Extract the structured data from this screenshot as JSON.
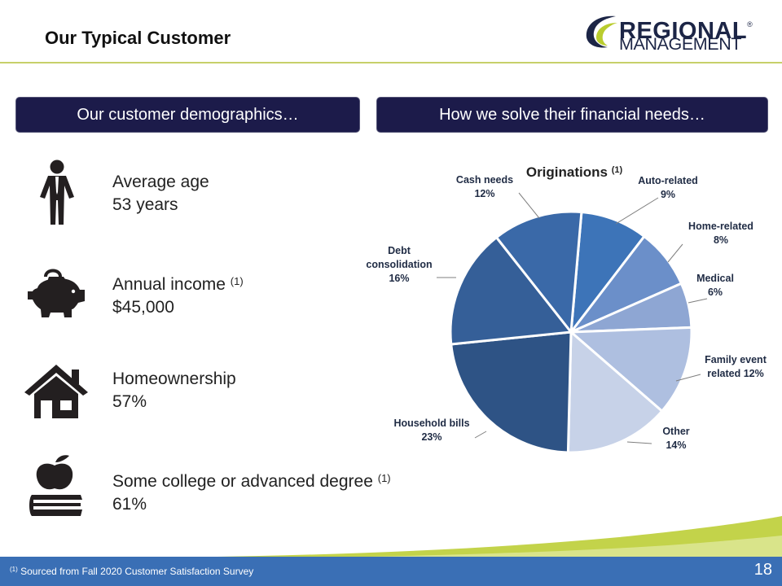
{
  "title": "Our Typical Customer",
  "logo": {
    "line1": "REGIONAL",
    "line2": "MANAGEMENT",
    "registered": "®"
  },
  "left_header": "Our customer demographics…",
  "right_header": "How we solve their financial needs…",
  "demographics": [
    {
      "icon": "person-icon",
      "label": "Average age",
      "footnote": "",
      "value": "53 years"
    },
    {
      "icon": "piggy-bank-icon",
      "label": "Annual income",
      "footnote": "(1)",
      "value": "$45,000"
    },
    {
      "icon": "house-icon",
      "label": "Homeownership",
      "footnote": "",
      "value": "57%"
    },
    {
      "icon": "apple-books-icon",
      "label": "Some college or advanced degree",
      "footnote": "(1)",
      "value": "61%"
    }
  ],
  "chart_data": {
    "type": "pie",
    "title": "Originations",
    "title_footnote": "(1)",
    "slices": [
      {
        "label": "Auto-related",
        "value": 9,
        "text": "9%",
        "color": "#3d74b8"
      },
      {
        "label": "Home-related",
        "value": 8,
        "text": "8%",
        "color": "#6b8fc9"
      },
      {
        "label": "Medical",
        "value": 6,
        "text": "6%",
        "color": "#8ea6d3"
      },
      {
        "label": "Family event related",
        "value": 12,
        "text": "12%",
        "color": "#aebfe0"
      },
      {
        "label": "Other",
        "value": 14,
        "text": "14%",
        "color": "#c7d2e8"
      },
      {
        "label": "Household bills",
        "value": 23,
        "text": "23%",
        "color": "#2e5385"
      },
      {
        "label": "Debt consolidation",
        "value": 16,
        "text": "16%",
        "color": "#355f98"
      },
      {
        "label": "Cash needs",
        "value": 12,
        "text": "12%",
        "color": "#3a69a8"
      }
    ],
    "start_angle_deg": 5
  },
  "colors": {
    "header_box": "#1c1b4a",
    "footer": "#3a6fb5",
    "accent_green": "#c7d06a",
    "icon": "#231f20"
  },
  "footer": {
    "note_mark": "(1)",
    "note": "Sourced from Fall 2020 Customer Satisfaction Survey",
    "page": "18"
  }
}
